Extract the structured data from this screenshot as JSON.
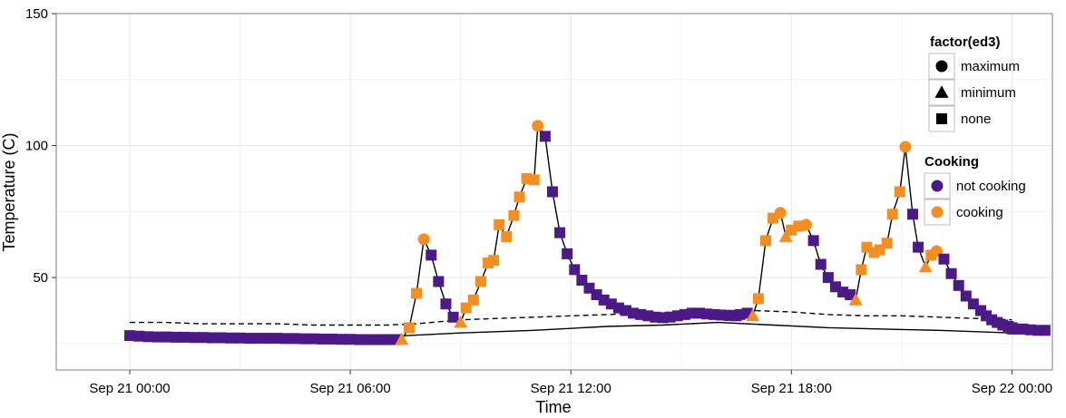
{
  "chart_data": {
    "type": "scatter",
    "xlabel": "Time",
    "ylabel": "Temperature (C)",
    "x_unit": "hours since Sep 21 00:00",
    "xlim": [
      -2,
      25.1
    ],
    "ylim": [
      15,
      150
    ],
    "x_ticks": [
      {
        "value": 0,
        "label": "Sep 21 00:00"
      },
      {
        "value": 6,
        "label": "Sep 21 06:00"
      },
      {
        "value": 12,
        "label": "Sep 21 12:00"
      },
      {
        "value": 18,
        "label": "Sep 21 18:00"
      },
      {
        "value": 24,
        "label": "Sep 22 00:00"
      }
    ],
    "y_ticks": [
      {
        "value": 50,
        "label": "50"
      },
      {
        "value": 100,
        "label": "100"
      },
      {
        "value": 150,
        "label": "150"
      }
    ],
    "grid": true,
    "colors": {
      "not_cooking": "#4B1A87",
      "cooking": "#F28E22",
      "line": "#000000"
    },
    "legend_shape": {
      "title": "factor(ed3)",
      "entries": [
        {
          "label": "maximum",
          "shape": "circle"
        },
        {
          "label": "minimum",
          "shape": "triangle"
        },
        {
          "label": "none",
          "shape": "square"
        }
      ]
    },
    "legend_color": {
      "title": "Cooking",
      "entries": [
        {
          "label": "not cooking",
          "color": "#4B1A87"
        },
        {
          "label": "cooking",
          "color": "#F28E22"
        }
      ]
    },
    "ambient_solid": {
      "x": [
        0,
        4,
        7.5,
        9,
        11,
        13,
        14.5,
        16,
        17.5,
        19,
        20.5,
        22,
        24
      ],
      "y": [
        28,
        27.5,
        28,
        29,
        30,
        31.5,
        32,
        33,
        32,
        31,
        30.5,
        30,
        29
      ]
    },
    "ambient_dashed": {
      "x": [
        0,
        1,
        2,
        3,
        4,
        5,
        6,
        7,
        7.8,
        9,
        10,
        11,
        12,
        13,
        14,
        15,
        16,
        17,
        18,
        19,
        20,
        21,
        22,
        23,
        24
      ],
      "y": [
        33,
        33,
        32.5,
        32.5,
        32.5,
        32,
        32,
        32,
        32.5,
        34,
        34.5,
        35,
        35.5,
        36,
        36.5,
        37,
        37.5,
        37.5,
        37,
        36,
        35.5,
        35.5,
        35,
        34.5,
        34
      ]
    },
    "points": [
      {
        "x": 0,
        "y": 28,
        "cooking": false,
        "shape": "none"
      },
      {
        "x": 0.25,
        "y": 27.8,
        "cooking": false,
        "shape": "none"
      },
      {
        "x": 0.5,
        "y": 27.6,
        "cooking": false,
        "shape": "none"
      },
      {
        "x": 0.75,
        "y": 27.5,
        "cooking": false,
        "shape": "none"
      },
      {
        "x": 1,
        "y": 27.5,
        "cooking": false,
        "shape": "none"
      },
      {
        "x": 1.25,
        "y": 27.4,
        "cooking": false,
        "shape": "none"
      },
      {
        "x": 1.5,
        "y": 27.4,
        "cooking": false,
        "shape": "none"
      },
      {
        "x": 1.75,
        "y": 27.3,
        "cooking": false,
        "shape": "none"
      },
      {
        "x": 2,
        "y": 27.3,
        "cooking": false,
        "shape": "none"
      },
      {
        "x": 2.25,
        "y": 27.2,
        "cooking": false,
        "shape": "none"
      },
      {
        "x": 2.5,
        "y": 27.2,
        "cooking": false,
        "shape": "none"
      },
      {
        "x": 2.75,
        "y": 27.1,
        "cooking": false,
        "shape": "none"
      },
      {
        "x": 3,
        "y": 27.1,
        "cooking": false,
        "shape": "none"
      },
      {
        "x": 3.25,
        "y": 27,
        "cooking": false,
        "shape": "none"
      },
      {
        "x": 3.5,
        "y": 27,
        "cooking": false,
        "shape": "none"
      },
      {
        "x": 3.75,
        "y": 27,
        "cooking": false,
        "shape": "none"
      },
      {
        "x": 4,
        "y": 27,
        "cooking": false,
        "shape": "none"
      },
      {
        "x": 4.25,
        "y": 26.9,
        "cooking": false,
        "shape": "none"
      },
      {
        "x": 4.5,
        "y": 26.9,
        "cooking": false,
        "shape": "none"
      },
      {
        "x": 4.75,
        "y": 26.8,
        "cooking": false,
        "shape": "none"
      },
      {
        "x": 5,
        "y": 26.8,
        "cooking": false,
        "shape": "none"
      },
      {
        "x": 5.25,
        "y": 26.7,
        "cooking": false,
        "shape": "none"
      },
      {
        "x": 5.5,
        "y": 26.7,
        "cooking": false,
        "shape": "none"
      },
      {
        "x": 5.75,
        "y": 26.6,
        "cooking": false,
        "shape": "none"
      },
      {
        "x": 6,
        "y": 26.6,
        "cooking": false,
        "shape": "none"
      },
      {
        "x": 6.25,
        "y": 26.5,
        "cooking": false,
        "shape": "none"
      },
      {
        "x": 6.5,
        "y": 26.5,
        "cooking": false,
        "shape": "none"
      },
      {
        "x": 6.75,
        "y": 26.5,
        "cooking": false,
        "shape": "none"
      },
      {
        "x": 7,
        "y": 26.5,
        "cooking": false,
        "shape": "none"
      },
      {
        "x": 7.25,
        "y": 26.5,
        "cooking": false,
        "shape": "none"
      },
      {
        "x": 7.4,
        "y": 26.5,
        "cooking": true,
        "shape": "minimum"
      },
      {
        "x": 7.6,
        "y": 31,
        "cooking": true,
        "shape": "none"
      },
      {
        "x": 7.8,
        "y": 44,
        "cooking": true,
        "shape": "none"
      },
      {
        "x": 8.0,
        "y": 64.5,
        "cooking": true,
        "shape": "maximum"
      },
      {
        "x": 8.2,
        "y": 58.5,
        "cooking": false,
        "shape": "none"
      },
      {
        "x": 8.4,
        "y": 48.5,
        "cooking": false,
        "shape": "none"
      },
      {
        "x": 8.6,
        "y": 40,
        "cooking": false,
        "shape": "none"
      },
      {
        "x": 8.8,
        "y": 35,
        "cooking": false,
        "shape": "none"
      },
      {
        "x": 9.0,
        "y": 33,
        "cooking": true,
        "shape": "minimum"
      },
      {
        "x": 9.15,
        "y": 38.5,
        "cooking": true,
        "shape": "none"
      },
      {
        "x": 9.35,
        "y": 41.5,
        "cooking": true,
        "shape": "none"
      },
      {
        "x": 9.55,
        "y": 48.5,
        "cooking": true,
        "shape": "none"
      },
      {
        "x": 9.75,
        "y": 55.5,
        "cooking": true,
        "shape": "none"
      },
      {
        "x": 9.9,
        "y": 56.5,
        "cooking": true,
        "shape": "none"
      },
      {
        "x": 10.05,
        "y": 70,
        "cooking": true,
        "shape": "none"
      },
      {
        "x": 10.25,
        "y": 65.5,
        "cooking": true,
        "shape": "none"
      },
      {
        "x": 10.45,
        "y": 73.5,
        "cooking": true,
        "shape": "none"
      },
      {
        "x": 10.6,
        "y": 80.5,
        "cooking": true,
        "shape": "none"
      },
      {
        "x": 10.8,
        "y": 87.5,
        "cooking": true,
        "shape": "none"
      },
      {
        "x": 11.0,
        "y": 87,
        "cooking": true,
        "shape": "none"
      },
      {
        "x": 11.1,
        "y": 107.5,
        "cooking": true,
        "shape": "maximum"
      },
      {
        "x": 11.3,
        "y": 103.5,
        "cooking": false,
        "shape": "none"
      },
      {
        "x": 11.5,
        "y": 82.5,
        "cooking": false,
        "shape": "none"
      },
      {
        "x": 11.7,
        "y": 67,
        "cooking": false,
        "shape": "none"
      },
      {
        "x": 11.9,
        "y": 59,
        "cooking": false,
        "shape": "none"
      },
      {
        "x": 12.1,
        "y": 53,
        "cooking": false,
        "shape": "none"
      },
      {
        "x": 12.3,
        "y": 49,
        "cooking": false,
        "shape": "none"
      },
      {
        "x": 12.5,
        "y": 46,
        "cooking": false,
        "shape": "none"
      },
      {
        "x": 12.7,
        "y": 43.5,
        "cooking": false,
        "shape": "none"
      },
      {
        "x": 12.9,
        "y": 41.5,
        "cooking": false,
        "shape": "none"
      },
      {
        "x": 13.1,
        "y": 40,
        "cooking": false,
        "shape": "none"
      },
      {
        "x": 13.3,
        "y": 38.5,
        "cooking": false,
        "shape": "none"
      },
      {
        "x": 13.5,
        "y": 37.5,
        "cooking": false,
        "shape": "none"
      },
      {
        "x": 13.7,
        "y": 36.5,
        "cooking": false,
        "shape": "none"
      },
      {
        "x": 13.9,
        "y": 36,
        "cooking": false,
        "shape": "none"
      },
      {
        "x": 14.1,
        "y": 35.5,
        "cooking": false,
        "shape": "none"
      },
      {
        "x": 14.3,
        "y": 35,
        "cooking": false,
        "shape": "none"
      },
      {
        "x": 14.5,
        "y": 34.8,
        "cooking": false,
        "shape": "none"
      },
      {
        "x": 14.7,
        "y": 35,
        "cooking": false,
        "shape": "none"
      },
      {
        "x": 14.9,
        "y": 35.5,
        "cooking": false,
        "shape": "none"
      },
      {
        "x": 15.1,
        "y": 36,
        "cooking": false,
        "shape": "none"
      },
      {
        "x": 15.3,
        "y": 36.5,
        "cooking": false,
        "shape": "none"
      },
      {
        "x": 15.5,
        "y": 36.5,
        "cooking": false,
        "shape": "none"
      },
      {
        "x": 15.7,
        "y": 36.2,
        "cooking": false,
        "shape": "none"
      },
      {
        "x": 15.9,
        "y": 36,
        "cooking": false,
        "shape": "none"
      },
      {
        "x": 16.1,
        "y": 35.8,
        "cooking": false,
        "shape": "none"
      },
      {
        "x": 16.3,
        "y": 35.6,
        "cooking": false,
        "shape": "none"
      },
      {
        "x": 16.5,
        "y": 35.5,
        "cooking": false,
        "shape": "none"
      },
      {
        "x": 16.6,
        "y": 36,
        "cooking": false,
        "shape": "none"
      },
      {
        "x": 16.8,
        "y": 36.5,
        "cooking": false,
        "shape": "none"
      },
      {
        "x": 16.95,
        "y": 35.5,
        "cooking": true,
        "shape": "minimum"
      },
      {
        "x": 17.1,
        "y": 42,
        "cooking": true,
        "shape": "none"
      },
      {
        "x": 17.3,
        "y": 64,
        "cooking": true,
        "shape": "none"
      },
      {
        "x": 17.5,
        "y": 72.5,
        "cooking": true,
        "shape": "none"
      },
      {
        "x": 17.7,
        "y": 74.5,
        "cooking": true,
        "shape": "maximum"
      },
      {
        "x": 17.85,
        "y": 65.5,
        "cooking": true,
        "shape": "minimum"
      },
      {
        "x": 18.0,
        "y": 68,
        "cooking": true,
        "shape": "none"
      },
      {
        "x": 18.2,
        "y": 69.5,
        "cooking": true,
        "shape": "none"
      },
      {
        "x": 18.4,
        "y": 70,
        "cooking": true,
        "shape": "maximum"
      },
      {
        "x": 18.6,
        "y": 64,
        "cooking": false,
        "shape": "none"
      },
      {
        "x": 18.8,
        "y": 55,
        "cooking": false,
        "shape": "none"
      },
      {
        "x": 19.0,
        "y": 50,
        "cooking": false,
        "shape": "none"
      },
      {
        "x": 19.2,
        "y": 46.5,
        "cooking": false,
        "shape": "none"
      },
      {
        "x": 19.4,
        "y": 44.5,
        "cooking": false,
        "shape": "none"
      },
      {
        "x": 19.6,
        "y": 43.5,
        "cooking": false,
        "shape": "none"
      },
      {
        "x": 19.75,
        "y": 41.5,
        "cooking": true,
        "shape": "minimum"
      },
      {
        "x": 19.9,
        "y": 53,
        "cooking": true,
        "shape": "none"
      },
      {
        "x": 20.05,
        "y": 61.5,
        "cooking": true,
        "shape": "none"
      },
      {
        "x": 20.25,
        "y": 59.5,
        "cooking": true,
        "shape": "none"
      },
      {
        "x": 20.4,
        "y": 60.5,
        "cooking": true,
        "shape": "none"
      },
      {
        "x": 20.6,
        "y": 63,
        "cooking": true,
        "shape": "none"
      },
      {
        "x": 20.75,
        "y": 74,
        "cooking": true,
        "shape": "none"
      },
      {
        "x": 20.95,
        "y": 82.5,
        "cooking": true,
        "shape": "none"
      },
      {
        "x": 21.1,
        "y": 99.5,
        "cooking": true,
        "shape": "maximum"
      },
      {
        "x": 21.3,
        "y": 74,
        "cooking": false,
        "shape": "none"
      },
      {
        "x": 21.45,
        "y": 61.5,
        "cooking": false,
        "shape": "none"
      },
      {
        "x": 21.65,
        "y": 54,
        "cooking": true,
        "shape": "minimum"
      },
      {
        "x": 21.8,
        "y": 58.5,
        "cooking": true,
        "shape": "none"
      },
      {
        "x": 21.95,
        "y": 60,
        "cooking": true,
        "shape": "maximum"
      },
      {
        "x": 22.15,
        "y": 57,
        "cooking": false,
        "shape": "none"
      },
      {
        "x": 22.35,
        "y": 51.5,
        "cooking": false,
        "shape": "none"
      },
      {
        "x": 22.55,
        "y": 47,
        "cooking": false,
        "shape": "none"
      },
      {
        "x": 22.75,
        "y": 43,
        "cooking": false,
        "shape": "none"
      },
      {
        "x": 22.95,
        "y": 40,
        "cooking": false,
        "shape": "none"
      },
      {
        "x": 23.15,
        "y": 37.5,
        "cooking": false,
        "shape": "none"
      },
      {
        "x": 23.3,
        "y": 35.5,
        "cooking": false,
        "shape": "none"
      },
      {
        "x": 23.45,
        "y": 34,
        "cooking": false,
        "shape": "none"
      },
      {
        "x": 23.6,
        "y": 33,
        "cooking": false,
        "shape": "none"
      },
      {
        "x": 23.75,
        "y": 32,
        "cooking": false,
        "shape": "none"
      },
      {
        "x": 23.9,
        "y": 31.5,
        "cooking": false,
        "shape": "none"
      },
      {
        "x": 24.0,
        "y": 31,
        "cooking": false,
        "shape": "none"
      },
      {
        "x": 24.15,
        "y": 30.5,
        "cooking": false,
        "shape": "none"
      },
      {
        "x": 24.3,
        "y": 30.5,
        "cooking": false,
        "shape": "none"
      },
      {
        "x": 24.5,
        "y": 30.2,
        "cooking": false,
        "shape": "none"
      },
      {
        "x": 24.7,
        "y": 30,
        "cooking": false,
        "shape": "none"
      },
      {
        "x": 24.9,
        "y": 30,
        "cooking": false,
        "shape": "none"
      },
      {
        "x": 24.0,
        "y": 30.5,
        "cooking": false,
        "shape": "none"
      }
    ]
  }
}
